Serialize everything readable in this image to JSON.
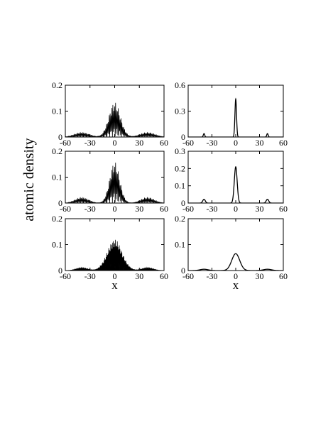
{
  "figure": {
    "ylabel": "atomic density"
  },
  "chart_data": [
    {
      "type": "line",
      "panel": "row1-left",
      "style": "rapid-oscillation",
      "xlim": [
        -60,
        60
      ],
      "ylim": [
        0,
        0.2
      ],
      "xticks": [
        "-60",
        "-30",
        "0",
        "30",
        "60"
      ],
      "yticks": [
        "0",
        "0.1",
        "0.2"
      ],
      "xlabel": "",
      "envelope": [
        {
          "center": 0,
          "height": 0.135,
          "width": 7
        },
        {
          "center": -40,
          "height": 0.018,
          "width": 9
        },
        {
          "center": 40,
          "height": 0.018,
          "width": 9
        }
      ],
      "oscillation_period": 1.1,
      "fill": false
    },
    {
      "type": "line",
      "panel": "row1-right",
      "style": "smooth",
      "xlim": [
        -60,
        60
      ],
      "ylim": [
        0,
        0.6
      ],
      "xticks": [
        "-60",
        "-30",
        "0",
        "30",
        "60"
      ],
      "yticks": [
        "0",
        "0.3",
        "0.6"
      ],
      "xlabel": "",
      "peaks": [
        {
          "center": 0,
          "height": 0.44,
          "width": 1.0
        },
        {
          "center": -40,
          "height": 0.04,
          "width": 0.9
        },
        {
          "center": 40,
          "height": 0.04,
          "width": 0.9
        }
      ]
    },
    {
      "type": "line",
      "panel": "row2-left",
      "style": "rapid-oscillation",
      "xlim": [
        -60,
        60
      ],
      "ylim": [
        0,
        0.2
      ],
      "xticks": [
        "-60",
        "-30",
        "0",
        "30",
        "60"
      ],
      "yticks": [
        "0",
        "0.1",
        "0.2"
      ],
      "xlabel": "",
      "envelope": [
        {
          "center": 0,
          "height": 0.16,
          "width": 6
        },
        {
          "center": -40,
          "height": 0.022,
          "width": 8
        },
        {
          "center": 40,
          "height": 0.022,
          "width": 8
        }
      ],
      "oscillation_period": 1.1,
      "fill": false
    },
    {
      "type": "line",
      "panel": "row2-right",
      "style": "smooth",
      "xlim": [
        -60,
        60
      ],
      "ylim": [
        0,
        0.3
      ],
      "xticks": [
        "-60",
        "-30",
        "0",
        "30",
        "60"
      ],
      "yticks": [
        "0",
        "0.1",
        "0.2",
        "0.3"
      ],
      "xlabel": "",
      "peaks": [
        {
          "center": 0,
          "height": 0.21,
          "width": 1.8
        },
        {
          "center": -40,
          "height": 0.022,
          "width": 1.6
        },
        {
          "center": 40,
          "height": 0.022,
          "width": 1.6
        }
      ]
    },
    {
      "type": "line",
      "panel": "row3-left",
      "style": "rapid-oscillation",
      "xlim": [
        -60,
        60
      ],
      "ylim": [
        0,
        0.2
      ],
      "xticks": [
        "-60",
        "-30",
        "0",
        "30",
        "60"
      ],
      "yticks": [
        "0",
        "0.1",
        "0.2"
      ],
      "xlabel": "x",
      "envelope": [
        {
          "center": 0,
          "height": 0.12,
          "width": 9
        },
        {
          "center": -40,
          "height": 0.012,
          "width": 7
        },
        {
          "center": 40,
          "height": 0.012,
          "width": 7
        }
      ],
      "oscillation_period": 0.8,
      "fill": true
    },
    {
      "type": "line",
      "panel": "row3-right",
      "style": "smooth",
      "xlim": [
        -60,
        60
      ],
      "ylim": [
        0,
        0.2
      ],
      "xticks": [
        "-60",
        "-30",
        "0",
        "30",
        "60"
      ],
      "yticks": [
        "0",
        "0.1",
        "0.2"
      ],
      "xlabel": "x",
      "peaks": [
        {
          "center": 0,
          "height": 0.065,
          "width": 5
        },
        {
          "center": -40,
          "height": 0.005,
          "width": 5
        },
        {
          "center": 40,
          "height": 0.005,
          "width": 5
        }
      ]
    }
  ]
}
